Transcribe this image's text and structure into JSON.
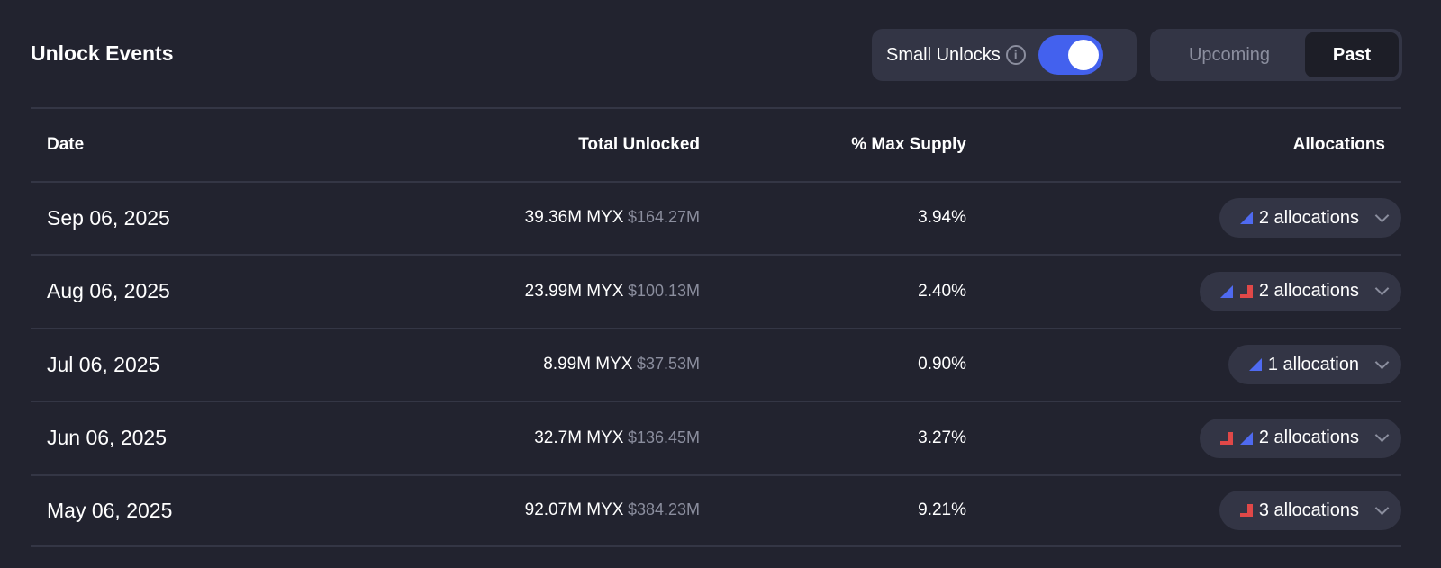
{
  "title": "Unlock Events",
  "controls": {
    "small_unlocks_label": "Small Unlocks",
    "small_unlocks_on": true,
    "tabs": [
      "Upcoming",
      "Past"
    ],
    "active_tab": "Past"
  },
  "colors": {
    "accent": "#4361ee",
    "linear": "#4f6af0",
    "cliff": "#e04848"
  },
  "table": {
    "headers": [
      "Date",
      "Total Unlocked",
      "% Max Supply",
      "Allocations"
    ],
    "rows": [
      {
        "date": "Sep 06, 2025",
        "amount": "39.36M MYX",
        "usd": "$164.27M",
        "pct": "3.94%",
        "alloc": "2 allocations",
        "icons": [
          "linear-triangle-icon"
        ]
      },
      {
        "date": "Aug 06, 2025",
        "amount": "23.99M MYX",
        "usd": "$100.13M",
        "pct": "2.40%",
        "alloc": "2 allocations",
        "icons": [
          "linear-triangle-icon",
          "cliff-step-icon"
        ]
      },
      {
        "date": "Jul 06, 2025",
        "amount": "8.99M MYX",
        "usd": "$37.53M",
        "pct": "0.90%",
        "alloc": "1 allocation",
        "icons": [
          "linear-triangle-icon"
        ]
      },
      {
        "date": "Jun 06, 2025",
        "amount": "32.7M MYX",
        "usd": "$136.45M",
        "pct": "3.27%",
        "alloc": "2 allocations",
        "icons": [
          "cliff-step-icon",
          "linear-triangle-icon"
        ]
      },
      {
        "date": "May 06, 2025",
        "amount": "92.07M MYX",
        "usd": "$384.23M",
        "pct": "9.21%",
        "alloc": "3 allocations",
        "icons": [
          "cliff-step-icon"
        ]
      }
    ]
  }
}
